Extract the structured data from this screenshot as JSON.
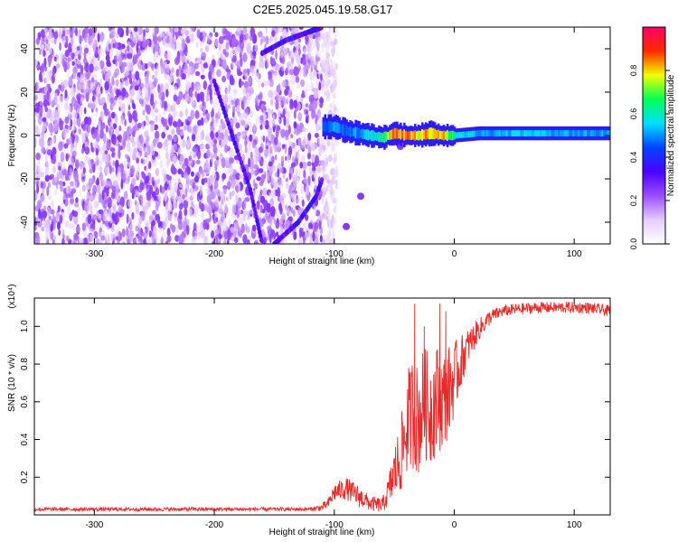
{
  "title": "C2E5.2025.045.19.58.G17",
  "colors": {
    "snr_line": "#e82a2a",
    "colormap": [
      "#ffffff",
      "#e6ccff",
      "#9a4dff",
      "#4b00ff",
      "#0044ff",
      "#00e0ff",
      "#00ff55",
      "#f2ff00",
      "#ff2a00",
      "#ff0066"
    ]
  },
  "chart_data": [
    {
      "type": "heatmap",
      "xlabel": "Height of straight line (km)",
      "ylabel": "Frequency (Hz)",
      "xlim": [
        -350,
        130
      ],
      "ylim": [
        -50,
        50
      ],
      "xticks": [
        -300,
        -200,
        -100,
        0,
        100
      ],
      "yticks": [
        -40,
        -20,
        0,
        20,
        40
      ],
      "grid": false,
      "colorbar": {
        "label": "Normalized spectral amplitude",
        "range": [
          0,
          1
        ],
        "ticks": [
          0.0,
          0.2,
          0.4,
          0.6,
          0.8
        ]
      },
      "features": {
        "noise_region_x": [
          -350,
          -110
        ],
        "carrier_line": {
          "x": [
            -110,
            -100,
            -90,
            -80,
            -70,
            -60,
            -50,
            -40,
            -30,
            -20,
            -10,
            0,
            20,
            60,
            100,
            130
          ],
          "freq_hz": [
            4,
            4,
            2,
            1,
            0,
            -1,
            1,
            0,
            0,
            1,
            0,
            0,
            1,
            1,
            1,
            1
          ],
          "peak_amplitude": [
            0.5,
            0.55,
            0.5,
            0.55,
            0.6,
            0.7,
            0.9,
            0.95,
            0.85,
            0.9,
            0.9,
            0.65,
            0.55,
            0.6,
            0.55,
            0.55
          ]
        },
        "diagonal_tracks": [
          {
            "x": [
              -200,
              -185,
              -170,
              -160
            ],
            "freq_hz": [
              25,
              0,
              -25,
              -50
            ]
          },
          {
            "x": [
              -160,
              -140,
              -120,
              -110
            ],
            "freq_hz": [
              38,
              44,
              48,
              50
            ]
          },
          {
            "x": [
              -150,
              -130,
              -115,
              -110
            ],
            "freq_hz": [
              -50,
              -40,
              -28,
              -20
            ]
          }
        ],
        "isolated_blobs": [
          {
            "x": -78,
            "freq_hz": -28
          },
          {
            "x": -90,
            "freq_hz": -42
          },
          {
            "x": -45,
            "freq_hz": -5
          }
        ]
      }
    },
    {
      "type": "line",
      "xlabel": "Height of straight line (km)",
      "ylabel": "SNR (10 * v/v)",
      "y_multiplier": "(x10⁴)",
      "xlim": [
        -350,
        130
      ],
      "ylim": [
        0,
        1.15
      ],
      "xticks": [
        -300,
        -200,
        -100,
        0,
        100
      ],
      "yticks": [
        0.2,
        0.4,
        0.6,
        0.8,
        1.0
      ],
      "grid": false,
      "series": [
        {
          "x": [
            -350,
            -300,
            -250,
            -200,
            -150,
            -120,
            -110,
            -105,
            -100,
            -90,
            -80,
            -70,
            -60,
            -55,
            -50,
            -45,
            -40,
            -35,
            -30,
            -25,
            -20,
            -15,
            -10,
            -5,
            0,
            5,
            10,
            20,
            30,
            40,
            50,
            70,
            90,
            110,
            130
          ],
          "values": [
            0.03,
            0.03,
            0.03,
            0.03,
            0.03,
            0.03,
            0.04,
            0.06,
            0.12,
            0.14,
            0.1,
            0.06,
            0.05,
            0.12,
            0.22,
            0.3,
            0.45,
            0.55,
            0.5,
            0.6,
            0.55,
            0.62,
            0.6,
            0.65,
            0.72,
            0.8,
            0.88,
            0.98,
            1.05,
            1.08,
            1.09,
            1.1,
            1.1,
            1.1,
            1.08
          ],
          "noise": [
            0.01,
            0.01,
            0.01,
            0.01,
            0.01,
            0.01,
            0.02,
            0.03,
            0.05,
            0.06,
            0.06,
            0.04,
            0.04,
            0.08,
            0.15,
            0.2,
            0.25,
            0.3,
            0.3,
            0.3,
            0.3,
            0.3,
            0.25,
            0.25,
            0.2,
            0.15,
            0.1,
            0.06,
            0.04,
            0.03,
            0.03,
            0.03,
            0.03,
            0.03,
            0.03
          ],
          "peaks": [
            {
              "x": -33,
              "value": 1.12
            },
            {
              "x": -25,
              "value": 1.0
            },
            {
              "x": -12,
              "value": 1.12
            },
            {
              "x": -7,
              "value": 1.08
            },
            {
              "x": -38,
              "value": 0.78
            }
          ]
        }
      ]
    }
  ]
}
